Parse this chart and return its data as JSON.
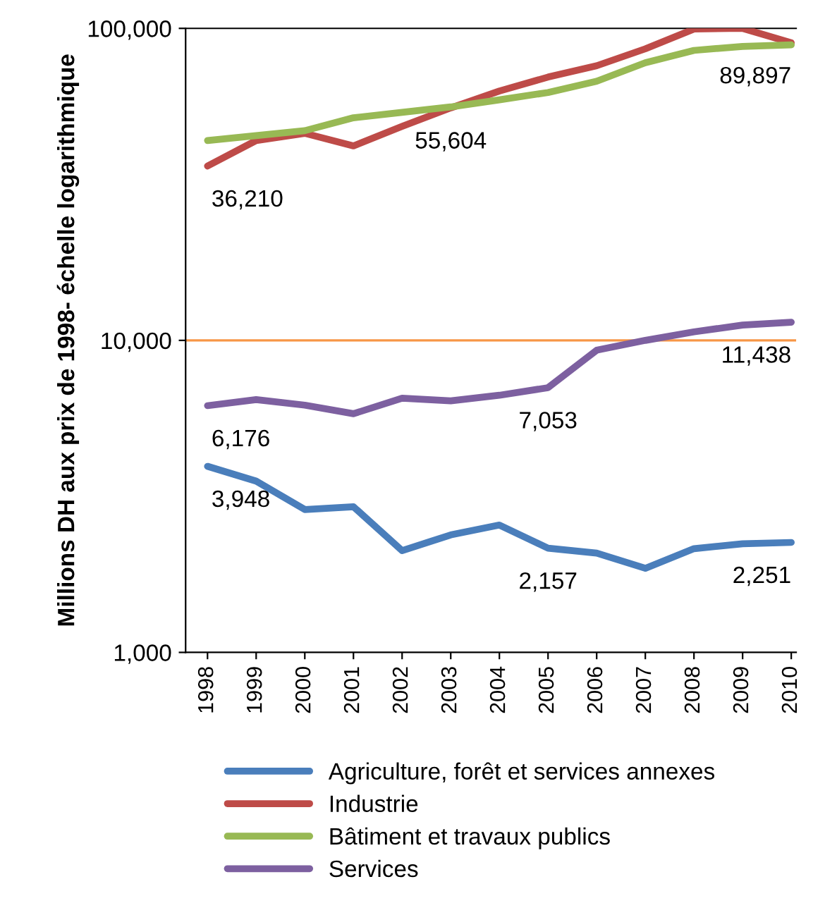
{
  "chart_data": {
    "type": "line",
    "ylabel": "Millions DH aux prix de 1998- échelle logarithmique",
    "categories": [
      "1998",
      "1999",
      "2000",
      "2001",
      "2002",
      "2003",
      "2004",
      "2005",
      "2006",
      "2007",
      "2008",
      "2009",
      "2010"
    ],
    "series": [
      {
        "name": "Agriculture, forêt et services annexes",
        "color": "#4a7ebb",
        "values": [
          3948,
          3540,
          2870,
          2930,
          2120,
          2380,
          2560,
          2157,
          2080,
          1860,
          2150,
          2230,
          2251
        ]
      },
      {
        "name": "Industrie",
        "color": "#be4b48",
        "values": [
          36210,
          43700,
          46100,
          42000,
          48500,
          55604,
          63000,
          69800,
          75900,
          86000,
          99500,
          100000,
          89897
        ]
      },
      {
        "name": "Bâtiment et travaux publics",
        "color": "#98b954",
        "values": [
          43700,
          45300,
          47000,
          51700,
          53800,
          56000,
          59000,
          62300,
          67700,
          77600,
          85000,
          87500,
          88500
        ]
      },
      {
        "name": "Services",
        "color": "#7d60a0",
        "values": [
          6176,
          6460,
          6200,
          5820,
          6530,
          6400,
          6670,
          7053,
          9300,
          10000,
          10650,
          11200,
          11438
        ]
      }
    ],
    "log": true,
    "ylim": [
      1000,
      100000
    ],
    "yticks": [
      {
        "value": 1000,
        "label": "1,000"
      },
      {
        "value": 10000,
        "label": "10,000"
      },
      {
        "value": 100000,
        "label": "100,000"
      }
    ],
    "ref_lines": [
      {
        "axis": "y",
        "value": 10000,
        "color": "#f79646"
      }
    ],
    "annotations": [
      {
        "text": "36,210",
        "x": "1998",
        "y": 36210
      },
      {
        "text": "55,604",
        "x": "2003",
        "y": 55604
      },
      {
        "text": "89,897",
        "x": "2010",
        "y": 89897
      },
      {
        "text": "6,176",
        "x": "1998",
        "y": 6176
      },
      {
        "text": "7,053",
        "x": "2005",
        "y": 7053
      },
      {
        "text": "11,438",
        "x": "2010",
        "y": 11438
      },
      {
        "text": "3,948",
        "x": "1998",
        "y": 3948
      },
      {
        "text": "2,157",
        "x": "2005",
        "y": 2157
      },
      {
        "text": "2,251",
        "x": "2010",
        "y": 2251
      }
    ],
    "grid": false,
    "legend": "bottom",
    "marker": "none",
    "line_style": "solid"
  }
}
